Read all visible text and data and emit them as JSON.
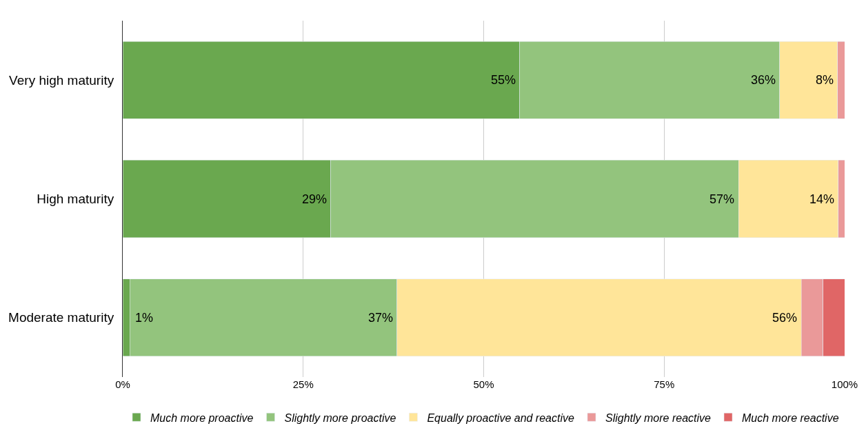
{
  "chart_data": {
    "type": "bar",
    "orientation": "horizontal",
    "stacked": true,
    "categories": [
      "Very high maturity",
      "High maturity",
      "Moderate maturity"
    ],
    "series": [
      {
        "name": "Much more proactive",
        "color": "#6aa84f",
        "values": [
          55,
          28.8,
          1
        ],
        "value_labels": [
          "55%",
          "29%",
          "1%"
        ]
      },
      {
        "name": "Slightly more proactive",
        "color": "#93c47d",
        "values": [
          36,
          56.5,
          37
        ],
        "value_labels": [
          "36%",
          "57%",
          "37%"
        ]
      },
      {
        "name": "Equally proactive and reactive",
        "color": "#ffe599",
        "values": [
          8,
          13.8,
          56
        ],
        "value_labels": [
          "8%",
          "14%",
          "56%"
        ]
      },
      {
        "name": "Slightly more reactive",
        "color": "#ea9999",
        "values": [
          1,
          0.9,
          3
        ],
        "value_labels": [
          null,
          null,
          null
        ]
      },
      {
        "name": "Much more reactive",
        "color": "#e06666",
        "values": [
          null,
          null,
          3
        ],
        "value_labels": [
          null,
          null,
          null
        ]
      }
    ],
    "xlim": [
      0,
      100
    ],
    "xticks": [
      {
        "value": 0,
        "label": "0%"
      },
      {
        "value": 25,
        "label": "25%"
      },
      {
        "value": 50,
        "label": "50%"
      },
      {
        "value": 75,
        "label": "75%"
      },
      {
        "value": 100,
        "label": "100%"
      }
    ],
    "grid": "x",
    "legend": "bottom"
  }
}
